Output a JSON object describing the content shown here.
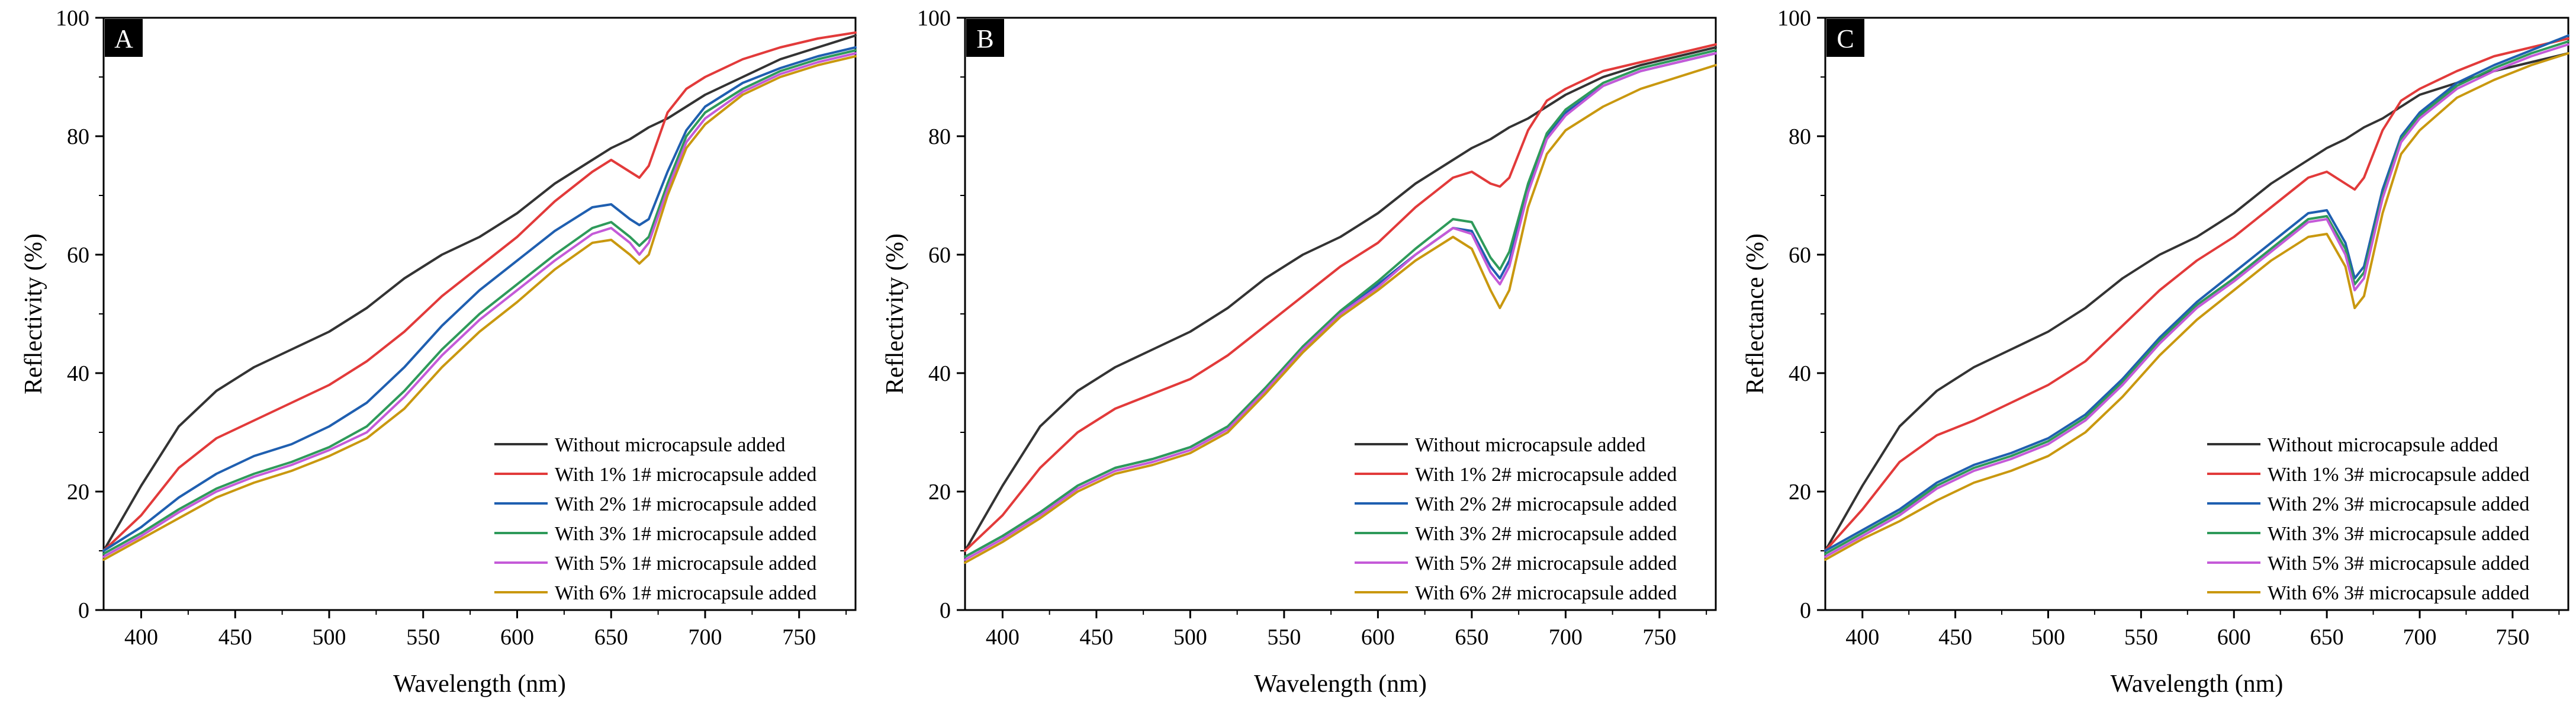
{
  "chart_data": [
    {
      "panel": "A",
      "type": "line",
      "xlabel": "Wavelength (nm)",
      "ylabel": "Reflectivity (%)",
      "xlim": [
        380,
        780
      ],
      "ylim": [
        0,
        100
      ],
      "xticks": [
        400,
        450,
        500,
        550,
        600,
        650,
        700,
        750
      ],
      "yticks": [
        0,
        20,
        40,
        60,
        80,
        100
      ],
      "x": [
        380,
        400,
        420,
        440,
        460,
        480,
        500,
        520,
        540,
        560,
        580,
        600,
        620,
        640,
        650,
        660,
        665,
        670,
        680,
        690,
        700,
        720,
        740,
        760,
        780
      ],
      "series": [
        {
          "name": "Without microcapsule added",
          "color": "#333333",
          "values": [
            10,
            21,
            31,
            37,
            41,
            44,
            47,
            51,
            56,
            60,
            63,
            67,
            72,
            76,
            78,
            79.5,
            80.5,
            81.5,
            83,
            85,
            87,
            90,
            93,
            95,
            97
          ]
        },
        {
          "name": "With 1% 1# microcapsule added",
          "color": "#e23a3a",
          "values": [
            10,
            16,
            24,
            29,
            32,
            35,
            38,
            42,
            47,
            53,
            58,
            63,
            69,
            74,
            76,
            74,
            73,
            75,
            84,
            88,
            90,
            93,
            95,
            96.5,
            97.5
          ]
        },
        {
          "name": "With 2% 1# microcapsule added",
          "color": "#1f5fb0",
          "values": [
            10,
            14,
            19,
            23,
            26,
            28,
            31,
            35,
            41,
            48,
            54,
            59,
            64,
            68,
            68.5,
            66,
            65,
            66,
            74,
            81,
            85,
            89,
            91.5,
            93.5,
            95
          ]
        },
        {
          "name": "With 3% 1# microcapsule added",
          "color": "#2e9a5a",
          "values": [
            9.5,
            13,
            17,
            20.5,
            23,
            25,
            27.5,
            31,
            37,
            44,
            50,
            55,
            60,
            64.5,
            65.5,
            63,
            61.5,
            63,
            72,
            80,
            84,
            88,
            91,
            93,
            94.5
          ]
        },
        {
          "name": "With 5% 1# microcapsule added",
          "color": "#c45ad8",
          "values": [
            9,
            12.5,
            16.5,
            20,
            22.5,
            24.5,
            27,
            30,
            36,
            43,
            49,
            54,
            59,
            63.5,
            64.5,
            62,
            60,
            62,
            71,
            79,
            83,
            87.5,
            90.5,
            92.5,
            94
          ]
        },
        {
          "name": "With 6% 1# microcapsule added",
          "color": "#c9980f",
          "values": [
            8.5,
            12,
            15.5,
            19,
            21.5,
            23.5,
            26,
            29,
            34,
            41,
            47,
            52,
            57.5,
            62,
            62.5,
            60,
            58.5,
            60,
            70,
            78,
            82,
            87,
            90,
            92,
            93.5
          ]
        }
      ]
    },
    {
      "panel": "B",
      "type": "line",
      "xlabel": "Wavelength (nm)",
      "ylabel": "Reflectivity (%)",
      "xlim": [
        380,
        780
      ],
      "ylim": [
        0,
        100
      ],
      "xticks": [
        400,
        450,
        500,
        550,
        600,
        650,
        700,
        750
      ],
      "yticks": [
        0,
        20,
        40,
        60,
        80,
        100
      ],
      "x": [
        380,
        400,
        420,
        440,
        460,
        480,
        500,
        520,
        540,
        560,
        580,
        600,
        620,
        640,
        650,
        660,
        665,
        670,
        680,
        690,
        700,
        720,
        740,
        760,
        780
      ],
      "series": [
        {
          "name": "Without microcapsule added",
          "color": "#333333",
          "values": [
            10,
            21,
            31,
            37,
            41,
            44,
            47,
            51,
            56,
            60,
            63,
            67,
            72,
            76,
            78,
            79.5,
            80.5,
            81.5,
            83,
            85,
            87,
            90,
            92,
            93.5,
            95
          ]
        },
        {
          "name": "With 1% 2# microcapsule added",
          "color": "#e23a3a",
          "values": [
            10,
            16,
            24,
            30,
            34,
            36.5,
            39,
            43,
            48,
            53,
            58,
            62,
            68,
            73,
            74,
            72,
            71.5,
            73,
            81,
            86,
            88,
            91,
            92.5,
            94,
            95.5
          ]
        },
        {
          "name": "With 2% 2# microcapsule added",
          "color": "#1f5fb0",
          "values": [
            9,
            12.5,
            16.5,
            21,
            24,
            25.5,
            27.5,
            31,
            37.5,
            44,
            50,
            55,
            60,
            64.5,
            64,
            58,
            56,
            59,
            71,
            80,
            84,
            88.5,
            91,
            92.5,
            94
          ]
        },
        {
          "name": "With 3% 2# microcapsule added",
          "color": "#2e9a5a",
          "values": [
            9,
            12.5,
            16.5,
            21,
            24,
            25.5,
            27.5,
            31,
            37.5,
            44.5,
            50.5,
            55.5,
            61,
            66,
            65.5,
            59.5,
            57.5,
            60.5,
            72,
            80.5,
            84.5,
            89,
            91.5,
            93,
            94.5
          ]
        },
        {
          "name": "With 5% 2# microcapsule added",
          "color": "#c45ad8",
          "values": [
            8.5,
            12,
            16,
            20.5,
            23.5,
            25,
            27,
            30.5,
            37,
            44,
            50,
            54.5,
            60,
            64.5,
            63.5,
            57,
            55,
            58,
            70.5,
            79.5,
            83.5,
            88.5,
            91,
            92.5,
            94
          ]
        },
        {
          "name": "With 6% 2# microcapsule added",
          "color": "#c9980f",
          "values": [
            8,
            11.5,
            15.5,
            20,
            23,
            24.5,
            26.5,
            30,
            36.5,
            43.5,
            49.5,
            54,
            59,
            63,
            61,
            54,
            51,
            54,
            68,
            77,
            81,
            85,
            88,
            90,
            92
          ]
        }
      ]
    },
    {
      "panel": "C",
      "type": "line",
      "xlabel": "Wavelength (nm)",
      "ylabel": "Reflectance (%)",
      "xlim": [
        380,
        780
      ],
      "ylim": [
        0,
        100
      ],
      "xticks": [
        400,
        450,
        500,
        550,
        600,
        650,
        700,
        750
      ],
      "yticks": [
        0,
        20,
        40,
        60,
        80,
        100
      ],
      "x": [
        380,
        400,
        420,
        440,
        460,
        480,
        500,
        520,
        540,
        560,
        580,
        600,
        620,
        640,
        650,
        660,
        665,
        670,
        680,
        690,
        700,
        720,
        740,
        760,
        780
      ],
      "series": [
        {
          "name": "Without microcapsule added",
          "color": "#333333",
          "values": [
            10,
            21,
            31,
            37,
            41,
            44,
            47,
            51,
            56,
            60,
            63,
            67,
            72,
            76,
            78,
            79.5,
            80.5,
            81.5,
            83,
            85,
            87,
            89,
            91,
            92.5,
            94
          ]
        },
        {
          "name": "With 1% 3# microcapsule added",
          "color": "#e23a3a",
          "values": [
            10,
            17,
            25,
            29.5,
            32,
            35,
            38,
            42,
            48,
            54,
            59,
            63,
            68,
            73,
            74,
            72,
            71,
            73,
            81,
            86,
            88,
            91,
            93.5,
            95,
            96.5
          ]
        },
        {
          "name": "With 2% 3# microcapsule added",
          "color": "#1f5fb0",
          "values": [
            10,
            13.5,
            17,
            21.5,
            24.5,
            26.5,
            29,
            33,
            39,
            46,
            52,
            57,
            62,
            67,
            67.5,
            62,
            56,
            58,
            71,
            80,
            84,
            89,
            92,
            94.5,
            97
          ]
        },
        {
          "name": "With 3% 3# microcapsule added",
          "color": "#2e9a5a",
          "values": [
            9.5,
            13,
            16.5,
            21,
            24,
            26,
            28.5,
            32.5,
            38.5,
            45.5,
            51.5,
            56,
            61,
            66,
            66.5,
            61,
            55,
            57,
            70,
            79.5,
            83.5,
            88.5,
            91.5,
            94,
            96
          ]
        },
        {
          "name": "With 5% 3# microcapsule added",
          "color": "#c45ad8",
          "values": [
            9,
            12.5,
            16,
            20.5,
            23.5,
            25.5,
            28,
            32,
            38,
            45,
            51,
            55.5,
            60.5,
            65.5,
            66,
            60,
            54,
            56,
            69.5,
            79,
            83,
            88,
            91,
            93.5,
            95.5
          ]
        },
        {
          "name": "With 6% 3# microcapsule added",
          "color": "#c9980f",
          "values": [
            8.5,
            12,
            15,
            18.5,
            21.5,
            23.5,
            26,
            30,
            36,
            43,
            49,
            54,
            59,
            63,
            63.5,
            58,
            51,
            53,
            67,
            77,
            81,
            86.5,
            89.5,
            92,
            94
          ]
        }
      ]
    }
  ]
}
